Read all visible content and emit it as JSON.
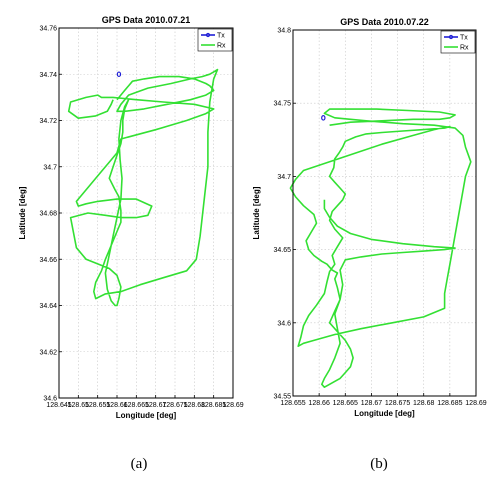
{
  "captions": [
    "(a)",
    "(b)"
  ],
  "chart_data": [
    {
      "type": "line",
      "title": "GPS Data 2010.07.21",
      "xlabel": "Longitude [deg]",
      "ylabel": "Latitude [deg]",
      "xlim": [
        128.645,
        128.69
      ],
      "ylim": [
        34.6,
        34.76
      ],
      "xticks": [
        "128.645",
        "128.65",
        "128.655",
        "128.66",
        "128.665",
        "128.67",
        "128.675",
        "128.68",
        "128.685",
        "128.69"
      ],
      "yticks": [
        "34.6",
        "34.62",
        "34.64",
        "34.66",
        "34.68",
        "34.7",
        "34.72",
        "34.74",
        "34.76"
      ],
      "grid": true,
      "legend": "top-right",
      "series": [
        {
          "name": "Tx",
          "color": "#1f1fd6",
          "x": [
            128.6605
          ],
          "y": [
            34.74
          ]
        },
        {
          "name": "Rx",
          "color": "#33e033",
          "x": [
            128.66,
            128.662,
            128.664,
            128.667,
            128.671,
            128.676,
            128.68,
            128.683,
            128.684,
            128.685,
            128.683,
            128.679,
            128.673,
            128.667,
            128.662,
            128.66,
            128.661,
            128.663,
            128.668,
            128.674,
            128.679,
            128.682,
            128.684,
            128.685,
            128.686,
            128.685,
            128.684,
            128.6835,
            128.6835,
            128.6825,
            128.6815,
            128.6805,
            128.678,
            128.672,
            128.666,
            128.661,
            128.657,
            128.6545,
            128.654,
            128.6545,
            128.656,
            128.657,
            128.658,
            128.659,
            128.66,
            128.661,
            128.661,
            128.6605,
            128.6595,
            128.658,
            128.659,
            128.66,
            128.661,
            128.6615,
            128.6615,
            128.662,
            128.663,
            128.662,
            128.661,
            128.6605,
            128.6608,
            128.6613,
            128.661,
            128.66,
            128.659,
            128.658,
            128.657,
            128.6575,
            128.6585,
            128.6595,
            128.66,
            128.6605,
            128.661,
            128.66,
            128.658,
            128.655,
            128.652,
            128.6495,
            128.648,
            128.6525,
            128.657,
            128.661,
            128.665,
            128.668,
            128.669,
            128.665,
            128.66,
            128.655,
            128.652,
            128.65,
            128.6495,
            128.653,
            128.656,
            128.658,
            128.66,
            128.661,
            128.67,
            128.678,
            128.683,
            128.685,
            128.68,
            128.672,
            128.665,
            128.659,
            128.656,
            128.655,
            128.652,
            128.648,
            128.6475,
            128.65,
            128.6545,
            128.6575,
            128.6585,
            128.659
          ],
          "y": [
            34.729,
            34.733,
            34.737,
            34.738,
            34.739,
            34.739,
            34.738,
            34.736,
            34.735,
            34.733,
            34.731,
            34.729,
            34.727,
            34.725,
            34.724,
            34.724,
            34.727,
            34.731,
            34.734,
            34.736,
            34.738,
            34.739,
            34.74,
            34.741,
            34.742,
            34.738,
            34.728,
            34.715,
            34.7,
            34.685,
            34.67,
            34.66,
            34.655,
            34.652,
            34.649,
            34.646,
            34.645,
            34.643,
            34.646,
            34.65,
            34.655,
            34.66,
            34.664,
            34.668,
            34.672,
            34.676,
            34.681,
            34.687,
            34.69,
            34.695,
            34.7,
            34.705,
            34.71,
            34.715,
            34.72,
            34.725,
            34.729,
            34.726,
            34.72,
            34.712,
            34.703,
            34.695,
            34.686,
            34.678,
            34.67,
            34.662,
            34.654,
            34.647,
            34.642,
            34.64,
            34.64,
            34.643,
            34.648,
            34.653,
            34.656,
            34.658,
            34.66,
            34.665,
            34.678,
            34.68,
            34.679,
            34.678,
            34.678,
            34.679,
            34.683,
            34.686,
            34.686,
            34.685,
            34.684,
            34.683,
            34.685,
            34.692,
            34.698,
            34.702,
            34.706,
            34.712,
            34.716,
            34.72,
            34.723,
            34.725,
            34.727,
            34.728,
            34.729,
            34.73,
            34.73,
            34.731,
            34.73,
            34.728,
            34.724,
            34.721,
            34.722,
            34.724,
            34.727,
            34.729
          ]
        }
      ]
    },
    {
      "type": "line",
      "title": "GPS Data 2010.07.22",
      "xlabel": "Longitude [deg]",
      "ylabel": "Latitude [deg]",
      "xlim": [
        128.655,
        128.69
      ],
      "ylim": [
        34.55,
        34.8
      ],
      "xticks": [
        "128.655",
        "128.66",
        "128.665",
        "128.67",
        "128.675",
        "128.68",
        "128.685",
        "128.69"
      ],
      "yticks": [
        "34.55",
        "34.6",
        "34.65",
        "34.7",
        "34.75",
        "34.8"
      ],
      "grid": true,
      "legend": "top-right",
      "series": [
        {
          "name": "Tx",
          "color": "#1f1fd6",
          "x": [
            128.6608
          ],
          "y": [
            34.74
          ]
        },
        {
          "name": "Rx",
          "color": "#33e033",
          "x": [
            128.662,
            128.666,
            128.672,
            128.678,
            128.683,
            128.685,
            128.686,
            128.683,
            128.677,
            128.671,
            128.666,
            128.662,
            128.661,
            128.663,
            128.669,
            128.676,
            128.682,
            128.686,
            128.6875,
            128.688,
            128.689,
            128.688,
            128.6875,
            128.687,
            128.6865,
            128.686,
            128.6855,
            128.685,
            128.6845,
            128.684,
            128.684,
            128.68,
            128.674,
            128.668,
            128.663,
            128.659,
            128.657,
            128.656,
            128.6565,
            128.657,
            128.658,
            128.6595,
            128.661,
            128.6615,
            128.662,
            128.663,
            128.6625,
            128.6635,
            128.6645,
            128.663,
            128.662,
            128.6625,
            128.6635,
            128.6645,
            128.665,
            128.664,
            128.663,
            128.662,
            128.6628,
            128.663,
            128.6638,
            128.6645,
            128.665,
            128.667,
            128.669,
            128.672,
            128.676,
            128.68,
            128.684,
            128.685,
            128.682,
            128.678,
            128.672,
            128.667,
            128.662,
            128.657,
            128.6555,
            128.6545,
            128.6555,
            128.657,
            128.659,
            128.6595,
            128.6585,
            128.6575,
            128.658,
            128.659,
            128.6605,
            128.6615,
            128.662,
            128.6625,
            128.6635,
            128.663,
            128.6635,
            128.664,
            128.663,
            128.662,
            128.6635,
            128.665,
            128.666,
            128.6665,
            128.666,
            128.665,
            128.664,
            128.662,
            128.661,
            128.6605,
            128.661,
            128.662,
            128.663,
            128.664,
            128.6635,
            128.663,
            128.664,
            128.6645,
            128.664,
            128.665,
            128.668,
            128.672,
            128.676,
            128.68,
            128.684,
            128.686,
            128.682,
            128.676,
            128.67,
            128.666,
            128.6635,
            128.662,
            128.661,
            128.661
          ],
          "y": [
            34.735,
            34.737,
            34.738,
            34.739,
            34.739,
            34.74,
            34.742,
            34.744,
            34.745,
            34.746,
            34.746,
            34.746,
            34.743,
            34.74,
            34.738,
            34.736,
            34.735,
            34.733,
            34.728,
            34.72,
            34.71,
            34.7,
            34.69,
            34.68,
            34.67,
            34.66,
            34.65,
            34.64,
            34.63,
            34.62,
            34.61,
            34.604,
            34.6,
            34.596,
            34.592,
            34.588,
            34.586,
            34.584,
            34.59,
            34.598,
            34.605,
            34.612,
            34.62,
            34.628,
            34.635,
            34.64,
            34.646,
            34.652,
            34.658,
            34.664,
            34.67,
            34.676,
            34.68,
            34.684,
            34.688,
            34.692,
            34.696,
            34.7,
            34.706,
            34.712,
            34.716,
            34.72,
            34.724,
            34.727,
            34.729,
            34.73,
            34.731,
            34.732,
            34.733,
            34.734,
            34.732,
            34.728,
            34.722,
            34.716,
            34.71,
            34.704,
            34.698,
            34.692,
            34.686,
            34.68,
            34.674,
            34.668,
            34.662,
            34.656,
            34.65,
            34.646,
            34.642,
            34.64,
            34.638,
            34.636,
            34.634,
            34.63,
            34.624,
            34.616,
            34.608,
            34.6,
            34.594,
            34.588,
            34.582,
            34.576,
            34.57,
            34.566,
            34.562,
            34.558,
            34.556,
            34.558,
            34.562,
            34.568,
            34.576,
            34.586,
            34.596,
            34.606,
            34.616,
            34.626,
            34.636,
            34.643,
            34.645,
            34.647,
            34.648,
            34.649,
            34.65,
            34.651,
            34.652,
            34.654,
            34.657,
            34.661,
            34.666,
            34.672,
            34.678,
            34.684
          ]
        }
      ]
    }
  ]
}
